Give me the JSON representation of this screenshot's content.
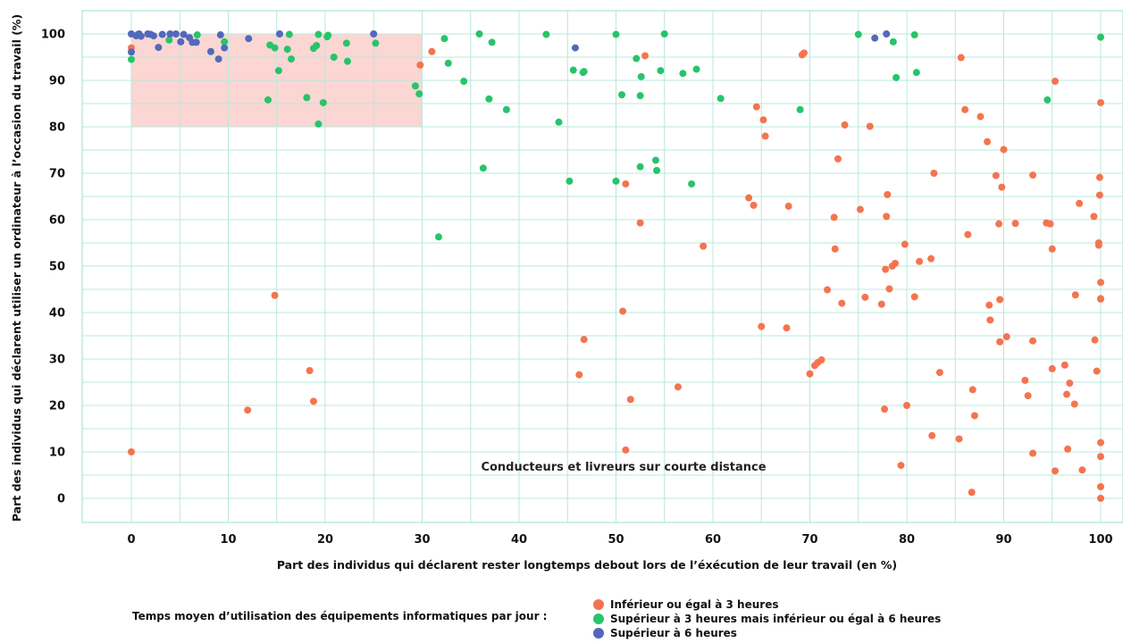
{
  "chart_data": {
    "type": "scatter",
    "xlabel": "Part des individus qui déclarent rester longtemps debout lors de l’éxécution de leur travail (en %)",
    "ylabel": "Part des individus qui déclarent utiliser un ordinateur à l’occasion du travail (%)",
    "xlim": [
      -5,
      102
    ],
    "ylim": [
      -5,
      105
    ],
    "x_ticks": [
      0,
      10,
      20,
      30,
      40,
      50,
      60,
      70,
      80,
      90,
      100
    ],
    "y_ticks": [
      0,
      10,
      20,
      30,
      40,
      50,
      60,
      70,
      80,
      90,
      100
    ],
    "grid": true,
    "highlight_region": {
      "x": [
        0,
        30
      ],
      "y": [
        80,
        100
      ],
      "color": "#fbd6d3"
    },
    "annotation": {
      "text": "Conducteurs et livreurs sur courte distance",
      "x": 52,
      "y": 7
    },
    "legend": {
      "title": "Temps moyen d’utilisation des équipements informatiques par jour :",
      "placement": "bottom"
    },
    "series": [
      {
        "name": "Inférieur ou égal à 3 heures",
        "color": "#f47450",
        "points": [
          [
            0,
            97
          ],
          [
            0,
            10
          ],
          [
            12,
            19
          ],
          [
            14.8,
            43.7
          ],
          [
            18.4,
            27.5
          ],
          [
            18.8,
            20.9
          ],
          [
            29.8,
            93.3
          ],
          [
            31,
            96.2
          ],
          [
            53,
            95.3
          ],
          [
            50.7,
            40.3
          ],
          [
            51,
            10.4
          ],
          [
            51,
            67.7
          ],
          [
            51.5,
            21.3
          ],
          [
            52.5,
            59.3
          ],
          [
            46.2,
            26.6
          ],
          [
            46.7,
            34.2
          ],
          [
            56.4,
            24
          ],
          [
            59,
            54.3
          ],
          [
            63.7,
            64.7
          ],
          [
            64.2,
            63.1
          ],
          [
            64.5,
            84.3
          ],
          [
            65,
            37
          ],
          [
            65.2,
            81.5
          ],
          [
            65.4,
            78
          ],
          [
            67.6,
            36.7
          ],
          [
            67.8,
            62.9
          ],
          [
            69.2,
            95.5
          ],
          [
            69.4,
            95.9
          ],
          [
            70,
            26.8
          ],
          [
            70.5,
            28.6
          ],
          [
            70.8,
            29.2
          ],
          [
            71.2,
            29.8
          ],
          [
            71.8,
            44.9
          ],
          [
            72.5,
            60.5
          ],
          [
            72.6,
            53.7
          ],
          [
            72.9,
            73.1
          ],
          [
            73.3,
            42
          ],
          [
            73.6,
            80.4
          ],
          [
            75.2,
            62.2
          ],
          [
            75.7,
            43.3
          ],
          [
            76.2,
            80.1
          ],
          [
            77.4,
            41.8
          ],
          [
            77.7,
            19.2
          ],
          [
            77.8,
            49.3
          ],
          [
            77.9,
            60.7
          ],
          [
            78,
            65.4
          ],
          [
            78.2,
            45.1
          ],
          [
            78.5,
            50
          ],
          [
            78.8,
            50.6
          ],
          [
            79.4,
            7.1
          ],
          [
            79.8,
            54.7
          ],
          [
            80,
            20
          ],
          [
            80.8,
            43.4
          ],
          [
            81.3,
            51
          ],
          [
            82.5,
            51.6
          ],
          [
            82.6,
            13.5
          ],
          [
            82.8,
            70
          ],
          [
            83.4,
            27.1
          ],
          [
            85.4,
            12.8
          ],
          [
            85.6,
            94.9
          ],
          [
            86,
            83.7
          ],
          [
            86.3,
            56.8
          ],
          [
            86.7,
            1.3
          ],
          [
            86.8,
            23.4
          ],
          [
            87,
            17.8
          ],
          [
            87.6,
            82.2
          ],
          [
            88.3,
            76.8
          ],
          [
            88.5,
            41.6
          ],
          [
            88.6,
            38.4
          ],
          [
            89.2,
            69.5
          ],
          [
            89.5,
            59.1
          ],
          [
            89.6,
            42.8
          ],
          [
            89.6,
            33.7
          ],
          [
            89.8,
            67
          ],
          [
            90,
            75.1
          ],
          [
            90.3,
            34.8
          ],
          [
            91.2,
            59.2
          ],
          [
            92.2,
            25.4
          ],
          [
            92.5,
            22.1
          ],
          [
            93,
            69.6
          ],
          [
            93,
            33.9
          ],
          [
            93,
            9.7
          ],
          [
            94.4,
            59.3
          ],
          [
            94.8,
            59.1
          ],
          [
            95,
            27.9
          ],
          [
            95,
            53.7
          ],
          [
            95.3,
            89.8
          ],
          [
            95.3,
            5.9
          ],
          [
            96.3,
            28.7
          ],
          [
            96.5,
            22.4
          ],
          [
            96.6,
            10.6
          ],
          [
            96.8,
            24.8
          ],
          [
            97.3,
            20.3
          ],
          [
            97.4,
            43.8
          ],
          [
            97.8,
            63.5
          ],
          [
            98.1,
            6.1
          ],
          [
            99.3,
            60.7
          ],
          [
            99.4,
            34.1
          ],
          [
            99.6,
            27.4
          ],
          [
            99.8,
            55
          ],
          [
            99.8,
            54.5
          ],
          [
            99.9,
            65.3
          ],
          [
            99.9,
            69.1
          ],
          [
            100,
            85.2
          ],
          [
            100,
            46.5
          ],
          [
            100,
            43
          ],
          [
            100,
            42.9
          ],
          [
            100,
            12
          ],
          [
            100,
            9
          ],
          [
            100,
            2.5
          ],
          [
            100,
            0
          ]
        ]
      },
      {
        "name": "Supérieur à 3 heures mais inférieur ou égal à 6 heures",
        "color": "#27c46b",
        "points": [
          [
            0,
            94.5
          ],
          [
            3.9,
            98.7
          ],
          [
            6.8,
            99.8
          ],
          [
            9.6,
            98.3
          ],
          [
            14.1,
            85.8
          ],
          [
            14.3,
            97.6
          ],
          [
            14.8,
            97
          ],
          [
            15.2,
            92.1
          ],
          [
            16.1,
            96.7
          ],
          [
            16.3,
            99.9
          ],
          [
            16.5,
            94.6
          ],
          [
            18.1,
            86.3
          ],
          [
            18.8,
            96.9
          ],
          [
            19.1,
            97.5
          ],
          [
            19.3,
            80.6
          ],
          [
            19.3,
            99.9
          ],
          [
            19.8,
            85.2
          ],
          [
            20.2,
            99.4
          ],
          [
            20.3,
            99.7
          ],
          [
            20.9,
            95
          ],
          [
            22.2,
            98
          ],
          [
            22.3,
            94.1
          ],
          [
            25.2,
            98
          ],
          [
            29.3,
            88.8
          ],
          [
            29.7,
            87.1
          ],
          [
            31.7,
            56.3
          ],
          [
            32.3,
            99
          ],
          [
            32.7,
            93.7
          ],
          [
            34.3,
            89.8
          ],
          [
            35.9,
            100
          ],
          [
            36.3,
            71.1
          ],
          [
            36.9,
            86
          ],
          [
            37.2,
            98.2
          ],
          [
            38.7,
            83.7
          ],
          [
            42.8,
            99.9
          ],
          [
            44.1,
            81
          ],
          [
            45.2,
            68.3
          ],
          [
            45.6,
            92.2
          ],
          [
            46.6,
            91.7
          ],
          [
            46.7,
            91.9
          ],
          [
            50,
            68.3
          ],
          [
            50,
            99.9
          ],
          [
            50.6,
            86.9
          ],
          [
            52.1,
            94.7
          ],
          [
            52.5,
            71.4
          ],
          [
            52.5,
            86.7
          ],
          [
            52.6,
            90.8
          ],
          [
            54.1,
            72.8
          ],
          [
            54.2,
            70.6
          ],
          [
            54.6,
            92.1
          ],
          [
            55,
            100
          ],
          [
            56.9,
            91.5
          ],
          [
            57.8,
            67.7
          ],
          [
            58.3,
            92.4
          ],
          [
            60.8,
            86.1
          ],
          [
            69,
            83.7
          ],
          [
            75,
            99.9
          ],
          [
            78.6,
            98.3
          ],
          [
            78.9,
            90.6
          ],
          [
            80.8,
            99.8
          ],
          [
            81,
            91.7
          ],
          [
            94.5,
            85.8
          ],
          [
            100,
            99.3
          ]
        ]
      },
      {
        "name": "Supérieur à 6 heures",
        "color": "#5268bb",
        "points": [
          [
            0,
            100
          ],
          [
            0,
            96.1
          ],
          [
            0.5,
            99.6
          ],
          [
            0.7,
            99.9
          ],
          [
            0.8,
            100
          ],
          [
            1,
            99.5
          ],
          [
            1.7,
            100
          ],
          [
            2,
            99.9
          ],
          [
            2.3,
            99.6
          ],
          [
            2.8,
            97.1
          ],
          [
            3.2,
            99.9
          ],
          [
            4,
            100
          ],
          [
            4.6,
            100
          ],
          [
            5.1,
            98.3
          ],
          [
            5.4,
            99.9
          ],
          [
            6,
            99.2
          ],
          [
            6.3,
            98.2
          ],
          [
            6.7,
            98.2
          ],
          [
            8.2,
            96.2
          ],
          [
            9,
            94.6
          ],
          [
            9.2,
            99.8
          ],
          [
            9.6,
            97
          ],
          [
            12.1,
            99
          ],
          [
            15.3,
            100
          ],
          [
            25,
            100
          ],
          [
            45.8,
            97
          ],
          [
            76.7,
            99.1
          ],
          [
            77.9,
            100
          ]
        ]
      }
    ]
  }
}
